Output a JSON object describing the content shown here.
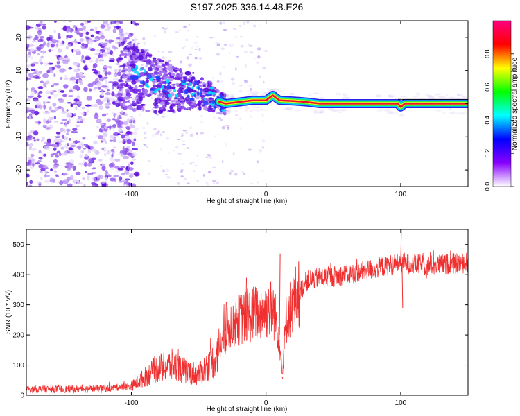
{
  "title": "S197.2025.336.14.48.E26",
  "colors": {
    "snr_line": "#f03030",
    "spectral_ridge_core": "#f01030",
    "speckle_dark": "#6a18e0",
    "speckle_light": "#c9a8f4"
  },
  "chart_data": [
    {
      "type": "heatmap",
      "name": "spectrogram",
      "xlabel": "Height of straight line (km)",
      "ylabel": "Frequency (Hz)",
      "xlim": [
        -178,
        150
      ],
      "ylim": [
        -25,
        25
      ],
      "xticks": [
        -100,
        0,
        100
      ],
      "xtick_labels": [
        "-100",
        "0",
        "100"
      ],
      "yticks": [
        -20,
        -10,
        0,
        10,
        20
      ],
      "ytick_labels": [
        "-20",
        "-10",
        "0",
        "10",
        "20"
      ],
      "colorbar": {
        "label": "Normalized spectral amplitude",
        "range": [
          0,
          1
        ],
        "ticks": [
          0.0,
          0.2,
          0.4,
          0.6,
          0.8
        ],
        "tick_labels": [
          "0.0",
          "0.2",
          "0.4",
          "0.6",
          "0.8"
        ],
        "colormap": [
          "#ffffff",
          "#8800ff",
          "#0000ff",
          "#00ffff",
          "#00ff00",
          "#ffff00",
          "#ff0000",
          "#ff0080"
        ]
      },
      "ridge": [
        [
          -105,
          9
        ],
        [
          -95,
          8
        ],
        [
          -85,
          6
        ],
        [
          -75,
          5
        ],
        [
          -65,
          4
        ],
        [
          -55,
          4
        ],
        [
          -45,
          3
        ],
        [
          -38,
          1
        ],
        [
          -30,
          0
        ],
        [
          -20,
          0.5
        ],
        [
          -10,
          1
        ],
        [
          0,
          1
        ],
        [
          5,
          2.5
        ],
        [
          10,
          1
        ],
        [
          20,
          0.8
        ],
        [
          30,
          0.5
        ],
        [
          40,
          0
        ],
        [
          60,
          0
        ],
        [
          80,
          0
        ],
        [
          98,
          0
        ],
        [
          100,
          -1
        ],
        [
          103,
          0
        ],
        [
          120,
          0
        ],
        [
          150,
          0
        ]
      ],
      "noise_region_x": [
        -178,
        -100
      ],
      "transition_region_x": [
        -110,
        -30
      ],
      "stable_tone_region_x": [
        -30,
        150
      ]
    },
    {
      "type": "line",
      "name": "snr",
      "xlabel": "Height of straight line (km)",
      "ylabel": "SNR (10 * v/v)",
      "xlim": [
        -178,
        150
      ],
      "ylim": [
        0,
        550
      ],
      "xticks": [
        -100,
        0,
        100
      ],
      "xtick_labels": [
        "-100",
        "0",
        "100"
      ],
      "yticks": [
        0,
        100,
        200,
        300,
        400,
        500
      ],
      "ytick_labels": [
        "0",
        "100",
        "200",
        "300",
        "400",
        "500"
      ],
      "envelope_x": [
        -178,
        -150,
        -120,
        -100,
        -90,
        -80,
        -70,
        -60,
        -50,
        -40,
        -35,
        -30,
        -25,
        -20,
        -10,
        0,
        5,
        10,
        12,
        15,
        20,
        25,
        30,
        40,
        60,
        80,
        100,
        120,
        150
      ],
      "envelope_y": [
        20,
        20,
        22,
        30,
        60,
        90,
        100,
        80,
        70,
        110,
        150,
        210,
        240,
        250,
        270,
        280,
        290,
        200,
        60,
        250,
        310,
        340,
        380,
        390,
        400,
        420,
        440,
        430,
        440
      ],
      "spikes": [
        [
          -30,
          310
        ],
        [
          -15,
          390
        ],
        [
          10,
          470
        ],
        [
          12,
          55
        ],
        [
          100,
          550
        ],
        [
          101,
          290
        ]
      ]
    }
  ]
}
